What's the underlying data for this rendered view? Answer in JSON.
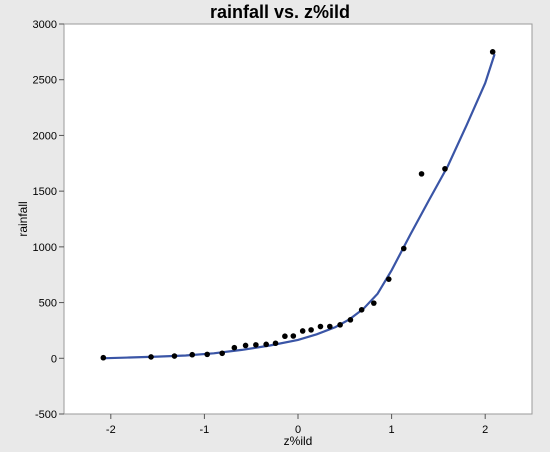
{
  "chart_data": {
    "type": "scatter",
    "title": "rainfall vs. z%ild",
    "xlabel": "z%ild",
    "ylabel": "rainfall",
    "xlim": [
      -2.5,
      2.5
    ],
    "ylim": [
      -500,
      3000
    ],
    "x_ticks": [
      "-2",
      "-1",
      "0",
      "1",
      "2"
    ],
    "x_tick_values": [
      -2,
      -1,
      0,
      1,
      2
    ],
    "y_ticks": [
      "-500",
      "0",
      "500",
      "1000",
      "1500",
      "2000",
      "2500",
      "3000"
    ],
    "y_tick_values": [
      -500,
      0,
      500,
      1000,
      1500,
      2000,
      2500,
      3000
    ],
    "grid": false,
    "points": [
      [
        -2.08,
        5
      ],
      [
        -1.57,
        12
      ],
      [
        -1.32,
        20
      ],
      [
        -1.13,
        32
      ],
      [
        -0.97,
        35
      ],
      [
        -0.81,
        45
      ],
      [
        -0.68,
        95
      ],
      [
        -0.56,
        115
      ],
      [
        -0.45,
        120
      ],
      [
        -0.34,
        125
      ],
      [
        -0.24,
        135
      ],
      [
        -0.14,
        198
      ],
      [
        -0.05,
        200
      ],
      [
        0.05,
        245
      ],
      [
        0.14,
        255
      ],
      [
        0.24,
        285
      ],
      [
        0.34,
        285
      ],
      [
        0.45,
        300
      ],
      [
        0.56,
        345
      ],
      [
        0.68,
        435
      ],
      [
        0.81,
        495
      ],
      [
        0.97,
        710
      ],
      [
        1.13,
        985
      ],
      [
        1.32,
        1655
      ],
      [
        1.57,
        1700
      ],
      [
        2.08,
        2750
      ]
    ],
    "fit_curve": [
      [
        -2.1,
        0
      ],
      [
        -1.8,
        7
      ],
      [
        -1.5,
        15
      ],
      [
        -1.2,
        25
      ],
      [
        -0.9,
        45
      ],
      [
        -0.6,
        75
      ],
      [
        -0.3,
        115
      ],
      [
        0.0,
        165
      ],
      [
        0.2,
        215
      ],
      [
        0.4,
        280
      ],
      [
        0.55,
        350
      ],
      [
        0.7,
        445
      ],
      [
        0.85,
        580
      ],
      [
        1.0,
        790
      ],
      [
        1.2,
        1110
      ],
      [
        1.4,
        1420
      ],
      [
        1.6,
        1725
      ],
      [
        1.8,
        2090
      ],
      [
        2.0,
        2470
      ],
      [
        2.1,
        2730
      ]
    ],
    "colors": {
      "points": "#000000",
      "fit_line": "#3a55a6",
      "plot_bg": "#ffffff",
      "frame_bg": "#e9e9e9"
    }
  }
}
